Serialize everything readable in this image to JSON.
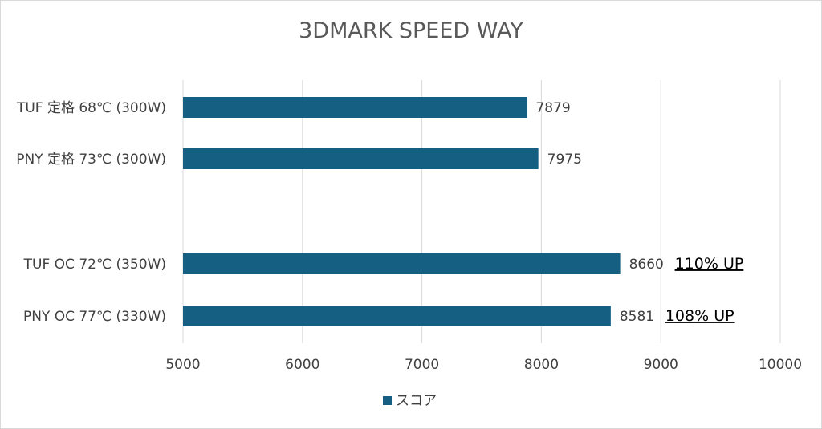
{
  "chart_data": {
    "type": "bar",
    "orientation": "horizontal",
    "title": "3DMARK SPEED WAY",
    "xlabel": "",
    "ylabel": "",
    "categories": [
      "TUF 定格 68℃ (300W)",
      "PNY 定格 73℃ (300W)",
      "",
      "TUF OC 72℃ (350W)",
      "PNY OC 77℃ (330W)"
    ],
    "series": [
      {
        "name": "スコア",
        "values": [
          7879,
          7975,
          null,
          8660,
          8581
        ],
        "color": "#156082"
      }
    ],
    "annotations": [
      "",
      "",
      "",
      "110% UP",
      "108% UP"
    ],
    "xlim": [
      5000,
      10000
    ],
    "xticks": [
      "5000",
      "6000",
      "7000",
      "8000",
      "9000",
      "10000"
    ],
    "grid": true,
    "legend_position": "bottom"
  }
}
